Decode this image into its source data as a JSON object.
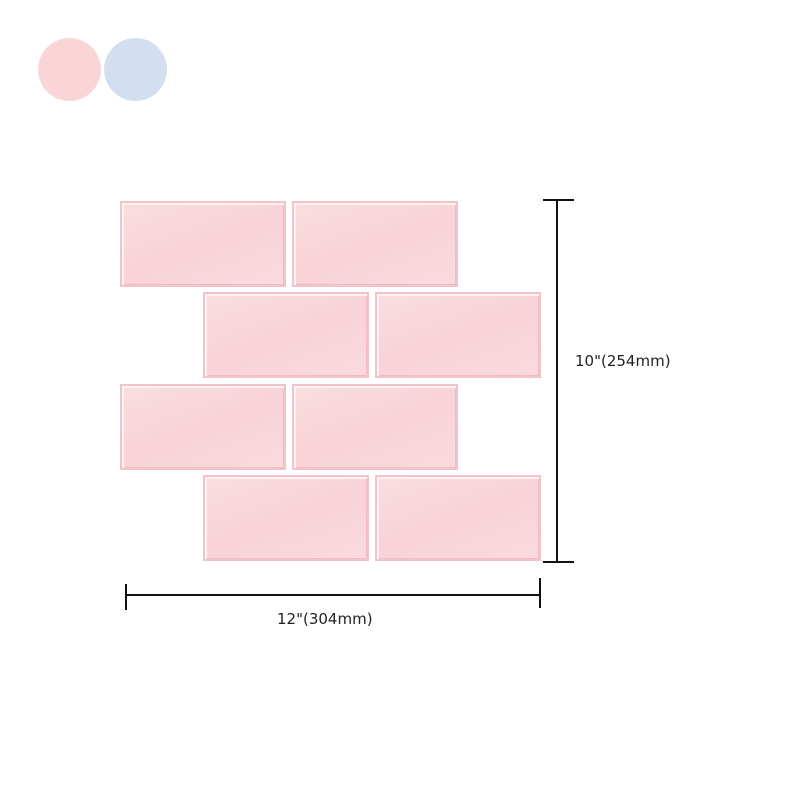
{
  "swatches": [
    {
      "name": "pink",
      "color": "#f9d5d8"
    },
    {
      "name": "blue",
      "color": "#d3dff0"
    }
  ],
  "tile_color": "#f8d4d8",
  "dimensions": {
    "height_label": "10\"(254mm)",
    "width_label": "12\"(304mm)"
  }
}
